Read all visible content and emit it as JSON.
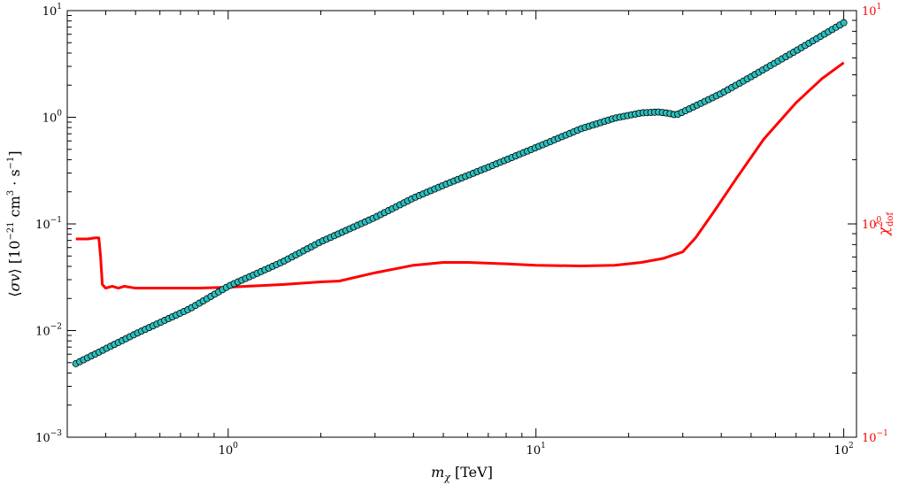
{
  "chart_data": {
    "type": "scatter",
    "xscale": "log",
    "xlim": [
      0.3,
      110
    ],
    "xlabel": "m_χ [TeV]",
    "xticks": [
      1,
      10,
      100
    ],
    "xtick_labels": [
      "10^0",
      "10^1",
      "10^2"
    ],
    "grid": false,
    "left_axis": {
      "scale": "log",
      "ylim": [
        0.001,
        10
      ],
      "ylabel": "⟨σv⟩ [10^-21 cm^3 · s^-1]",
      "ticks": [
        0.001,
        0.01,
        0.1,
        1,
        10
      ],
      "tick_labels": [
        "10^-3",
        "10^-2",
        "10^-1",
        "10^0",
        "10^1"
      ]
    },
    "right_axis": {
      "scale": "log",
      "ylim": [
        0.1,
        10
      ],
      "ylabel": "χ²_dof",
      "ticks": [
        0.1,
        1,
        10
      ],
      "tick_labels": [
        "10^-1",
        "10^0",
        "10^1"
      ],
      "color": "#ff0000"
    },
    "series": [
      {
        "marker": "circle",
        "axis": "left",
        "color": "#2bbfbf",
        "edge_color": "#000000",
        "x": [
          0.32,
          0.5,
          0.75,
          1.0,
          1.5,
          2.0,
          3.0,
          4.0,
          5.0,
          7.0,
          10.0,
          14.0,
          18.0,
          22.0,
          25.0,
          27.0,
          28.5,
          30.0,
          40.0,
          50.0,
          70.0,
          100.0
        ],
        "y": [
          0.0049,
          0.0093,
          0.016,
          0.026,
          0.044,
          0.068,
          0.115,
          0.175,
          0.23,
          0.34,
          0.52,
          0.78,
          0.98,
          1.1,
          1.12,
          1.09,
          1.05,
          1.12,
          1.67,
          2.4,
          4.2,
          7.7
        ]
      },
      {
        "marker": "line",
        "axis": "right",
        "color": "#ff0000",
        "x": [
          0.32,
          0.35,
          0.37,
          0.38,
          0.385,
          0.39,
          0.4,
          0.42,
          0.44,
          0.46,
          0.5,
          0.6,
          0.7,
          0.8,
          1.0,
          1.5,
          2.0,
          2.3,
          3.0,
          4.0,
          5.0,
          6.0,
          8.0,
          10.0,
          14.0,
          18.0,
          22.0,
          26.0,
          30.0,
          33.0,
          38.0,
          45.0,
          55.0,
          70.0,
          85.0,
          100.0
        ],
        "y": [
          0.85,
          0.85,
          0.86,
          0.86,
          0.7,
          0.52,
          0.5,
          0.51,
          0.5,
          0.51,
          0.5,
          0.5,
          0.5,
          0.5,
          0.505,
          0.52,
          0.535,
          0.54,
          0.59,
          0.64,
          0.66,
          0.66,
          0.65,
          0.64,
          0.635,
          0.64,
          0.66,
          0.69,
          0.74,
          0.86,
          1.15,
          1.65,
          2.5,
          3.7,
          4.8,
          5.7
        ]
      }
    ]
  }
}
